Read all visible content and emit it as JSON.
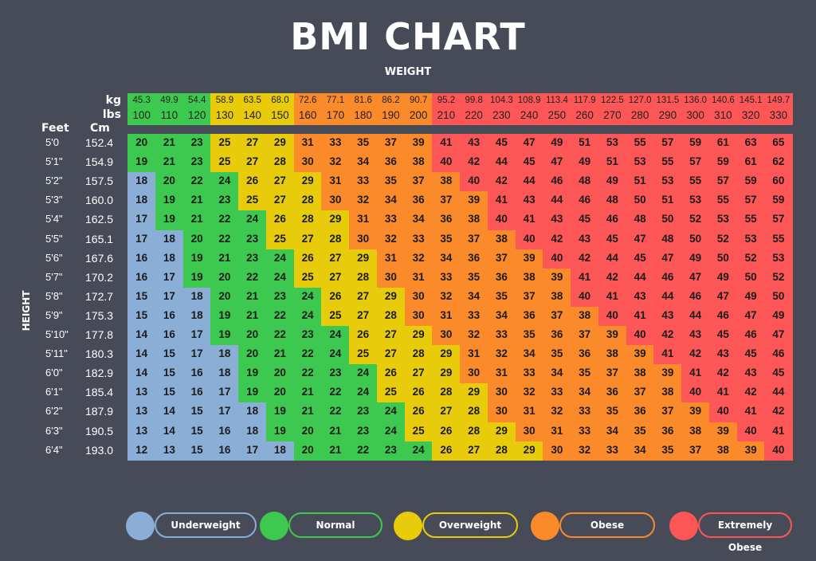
{
  "title": "BMI CHART",
  "subtitle": "WEIGHT",
  "yaxis_title": "HEIGHT",
  "labels": {
    "kg": "kg",
    "lbs": "lbs",
    "feet": "Feet",
    "cm": "Cm"
  },
  "colors": {
    "underweight": "#8aaed6",
    "normal": "#3dc94f",
    "overweight": "#e8cc0c",
    "obese": "#fb8a2b",
    "extremely_obese": "#fd5656"
  },
  "legend": [
    {
      "key": "underweight",
      "label": "Underweight",
      "color": "#8aaed6"
    },
    {
      "key": "normal",
      "label": "Normal",
      "color": "#3dc94f"
    },
    {
      "key": "overweight",
      "label": "Overweight",
      "color": "#e8cc0c"
    },
    {
      "key": "obese",
      "label": "Obese",
      "color": "#fb8a2b"
    },
    {
      "key": "extremely_obese",
      "label": "Extremely Obese",
      "color": "#fd5656"
    }
  ],
  "chart_data": {
    "type": "table",
    "title": "BMI CHART",
    "xlabel": "WEIGHT",
    "ylabel": "HEIGHT",
    "weight_kg": [
      "45.3",
      "49.9",
      "54.4",
      "58.9",
      "63.5",
      "68.0",
      "72.6",
      "77.1",
      "81.6",
      "86.2",
      "90.7",
      "95.2",
      "99.8",
      "104.3",
      "108.9",
      "113.4",
      "117.9",
      "122.5",
      "127.0",
      "131.5",
      "136.0",
      "140.6",
      "145.1",
      "149.7"
    ],
    "weight_lbs": [
      "100",
      "110",
      "120",
      "130",
      "140",
      "150",
      "160",
      "170",
      "180",
      "190",
      "200",
      "210",
      "220",
      "230",
      "240",
      "250",
      "260",
      "270",
      "280",
      "290",
      "300",
      "310",
      "320",
      "330"
    ],
    "height_feet": [
      "5'0",
      "5'1\"",
      "5'2\"",
      "5'3\"",
      "5'4\"",
      "5'5\"",
      "5'6\"",
      "5'7\"",
      "5'8\"",
      "5'9\"",
      "5'10\"",
      "5'11\"",
      "6'0\"",
      "6'1\"",
      "6'2\"",
      "6'3\"",
      "6'4\""
    ],
    "height_cm": [
      "152.4",
      "154.9",
      "157.5",
      "160.0",
      "162.5",
      "165.1",
      "167.6",
      "170.2",
      "172.7",
      "175.3",
      "177.8",
      "180.3",
      "182.9",
      "185.4",
      "187.9",
      "190.5",
      "193.0"
    ],
    "bmi": [
      [
        20,
        21,
        23,
        25,
        27,
        29,
        31,
        33,
        35,
        37,
        39,
        41,
        43,
        45,
        47,
        49,
        51,
        53,
        55,
        57,
        59,
        61,
        63,
        65
      ],
      [
        19,
        21,
        23,
        25,
        27,
        28,
        30,
        32,
        34,
        36,
        38,
        40,
        42,
        44,
        45,
        47,
        49,
        51,
        53,
        55,
        57,
        59,
        61,
        62
      ],
      [
        18,
        20,
        22,
        24,
        26,
        27,
        29,
        31,
        33,
        35,
        37,
        38,
        40,
        42,
        44,
        46,
        48,
        49,
        51,
        53,
        55,
        57,
        59,
        60
      ],
      [
        18,
        19,
        21,
        23,
        25,
        27,
        28,
        30,
        32,
        34,
        36,
        37,
        39,
        41,
        43,
        44,
        46,
        48,
        50,
        51,
        53,
        55,
        57,
        59
      ],
      [
        17,
        19,
        21,
        22,
        24,
        26,
        28,
        29,
        31,
        33,
        34,
        36,
        38,
        40,
        41,
        43,
        45,
        46,
        48,
        50,
        52,
        53,
        55,
        57
      ],
      [
        17,
        18,
        20,
        22,
        23,
        25,
        27,
        28,
        30,
        32,
        33,
        35,
        37,
        38,
        40,
        42,
        43,
        45,
        47,
        48,
        50,
        52,
        53,
        55
      ],
      [
        16,
        18,
        19,
        21,
        23,
        24,
        26,
        27,
        29,
        31,
        32,
        34,
        36,
        37,
        39,
        40,
        42,
        44,
        45,
        47,
        49,
        50,
        52,
        53
      ],
      [
        16,
        17,
        19,
        20,
        22,
        24,
        25,
        27,
        28,
        30,
        31,
        33,
        35,
        36,
        38,
        39,
        41,
        42,
        44,
        46,
        47,
        49,
        50,
        52
      ],
      [
        15,
        17,
        18,
        20,
        21,
        23,
        24,
        26,
        27,
        29,
        30,
        32,
        34,
        35,
        37,
        38,
        40,
        41,
        43,
        44,
        46,
        47,
        49,
        50
      ],
      [
        15,
        16,
        18,
        19,
        21,
        22,
        24,
        25,
        27,
        28,
        30,
        31,
        33,
        34,
        36,
        37,
        38,
        40,
        41,
        43,
        44,
        46,
        47,
        49
      ],
      [
        14,
        16,
        17,
        19,
        20,
        22,
        23,
        24,
        26,
        27,
        29,
        30,
        32,
        33,
        35,
        36,
        37,
        39,
        40,
        42,
        43,
        45,
        46,
        47
      ],
      [
        14,
        15,
        17,
        18,
        20,
        21,
        22,
        24,
        25,
        27,
        28,
        29,
        31,
        32,
        34,
        35,
        36,
        38,
        39,
        41,
        42,
        43,
        45,
        46
      ],
      [
        14,
        15,
        16,
        18,
        19,
        20,
        22,
        23,
        24,
        26,
        27,
        29,
        30,
        31,
        33,
        34,
        35,
        37,
        38,
        39,
        41,
        42,
        43,
        45
      ],
      [
        13,
        15,
        16,
        17,
        19,
        20,
        21,
        22,
        24,
        25,
        26,
        28,
        29,
        30,
        32,
        33,
        34,
        36,
        37,
        38,
        40,
        41,
        42,
        44
      ],
      [
        13,
        14,
        15,
        17,
        18,
        19,
        21,
        22,
        23,
        24,
        26,
        27,
        28,
        30,
        31,
        32,
        33,
        35,
        36,
        37,
        39,
        40,
        41,
        42
      ],
      [
        13,
        14,
        15,
        16,
        18,
        19,
        20,
        21,
        23,
        24,
        25,
        26,
        28,
        29,
        30,
        31,
        33,
        34,
        35,
        36,
        38,
        39,
        40,
        41
      ],
      [
        12,
        13,
        15,
        16,
        17,
        18,
        20,
        21,
        22,
        23,
        24,
        26,
        27,
        28,
        29,
        30,
        32,
        33,
        34,
        35,
        37,
        38,
        39,
        40
      ]
    ],
    "categories": [
      "Underweight",
      "Normal",
      "Overweight",
      "Obese",
      "Extremely Obese"
    ]
  }
}
